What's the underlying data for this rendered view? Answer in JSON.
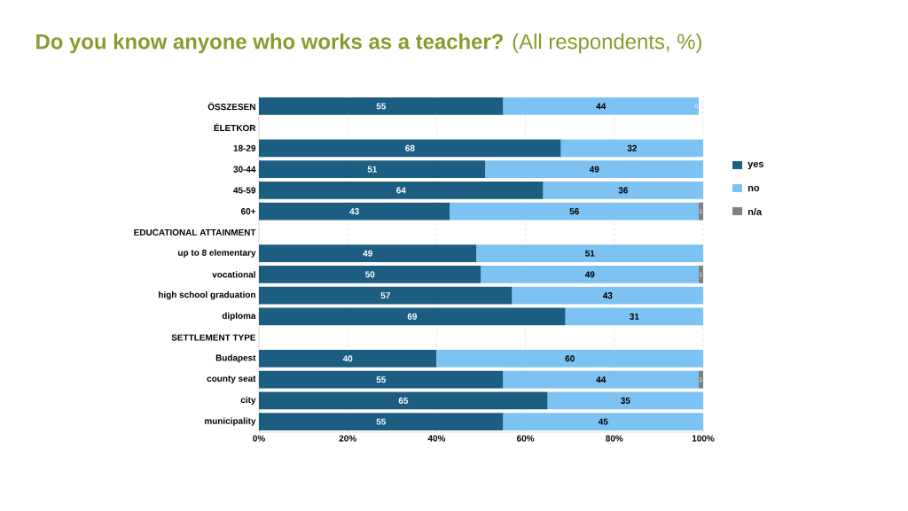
{
  "chart_data": {
    "type": "bar",
    "orientation": "horizontal",
    "stacked": true,
    "title": "**Do you know anyone who works as a teacher?** (All respondents, %)",
    "categories": [
      "ÖSSZESEN",
      "ÉLETKOR",
      "18-29",
      "30-44",
      "45-59",
      "60+",
      "EDUCATIONAL ATTAINMENT",
      "up to 8 elementary",
      "vocational",
      "high school graduation",
      "diploma",
      "SETTLEMENT TYPE",
      "Budapest",
      "county seat",
      "city",
      "municipality"
    ],
    "series": [
      {
        "name": "yes",
        "color": "#1b5e82",
        "values": [
          55,
          null,
          68,
          51,
          64,
          43,
          null,
          49,
          50,
          57,
          69,
          null,
          40,
          55,
          65,
          55
        ]
      },
      {
        "name": "no",
        "color": "#7cc3f3",
        "values": [
          44,
          null,
          32,
          49,
          36,
          56,
          null,
          51,
          49,
          43,
          31,
          null,
          60,
          44,
          35,
          45
        ]
      },
      {
        "name": "n/a",
        "color": "#808080",
        "values": [
          0,
          null,
          null,
          null,
          null,
          1,
          null,
          null,
          1,
          null,
          null,
          null,
          null,
          1,
          null,
          null
        ]
      }
    ],
    "xlim": [
      0,
      100
    ],
    "xticks": [
      {
        "value": 0,
        "label": "0%"
      },
      {
        "value": 20,
        "label": "20%"
      },
      {
        "value": 40,
        "label": "40%"
      },
      {
        "value": 60,
        "label": "60%"
      },
      {
        "value": 80,
        "label": "80%"
      },
      {
        "value": 100,
        "label": "100%"
      }
    ],
    "grid": "x",
    "legend": "right",
    "data_labels": true
  }
}
